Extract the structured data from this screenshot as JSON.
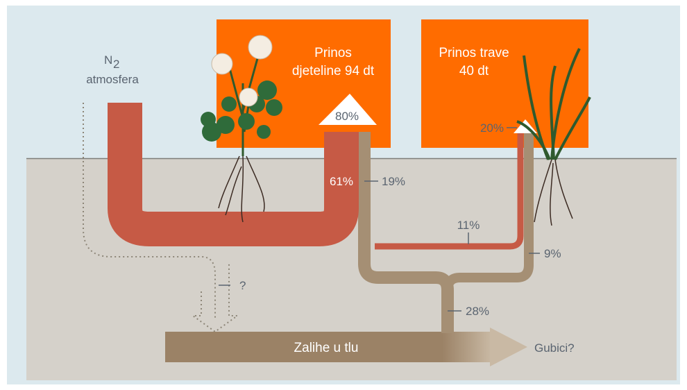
{
  "atmosphere": {
    "symbol": "N",
    "subscript": "2",
    "label": "atmosfera"
  },
  "clover_box": {
    "line1": "Prinos",
    "line2": "djeteline 94 dt"
  },
  "grass_box": {
    "line1": "Prinos trave",
    "line2": "40 dt"
  },
  "flows": {
    "clover_yield": "80%",
    "grass_yield": "20%",
    "fixation": "61%",
    "soil_to_clover": "19%",
    "transfer": "11%",
    "soil_to_grass": "9%",
    "to_soil": "28%",
    "leaching": "?"
  },
  "soil": {
    "label": "Zalihe u tlu",
    "losses": "Gubici?"
  }
}
